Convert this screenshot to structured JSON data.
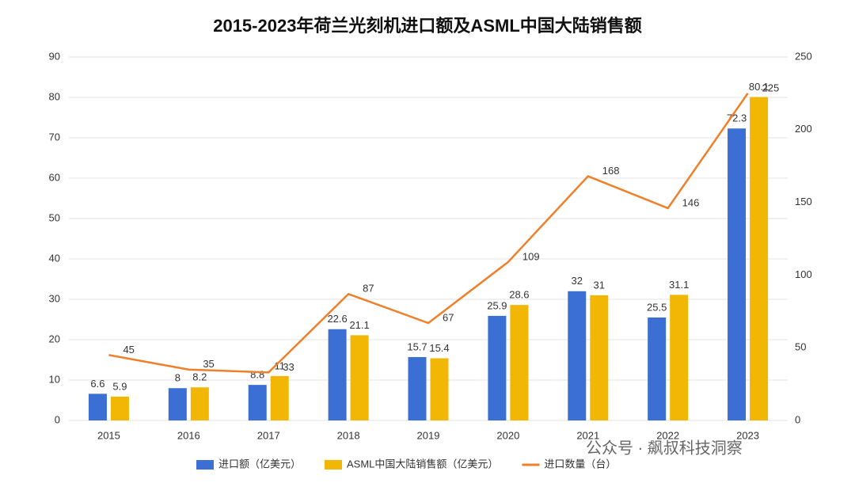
{
  "chart_data": {
    "type": "bar",
    "title": "2015-2023年荷兰光刻机进口额及ASML中国大陆销售额",
    "categories": [
      "2015",
      "2016",
      "2017",
      "2018",
      "2019",
      "2020",
      "2021",
      "2022",
      "2023"
    ],
    "series": [
      {
        "name": "进口额（亿美元）",
        "type": "bar",
        "color": "#3b6fd4",
        "values": [
          6.6,
          8,
          8.8,
          22.6,
          15.7,
          25.9,
          32,
          25.5,
          72.3
        ]
      },
      {
        "name": "ASML中国大陆销售额（亿美元）",
        "type": "bar",
        "color": "#f2b705",
        "values": [
          5.9,
          8.2,
          11,
          21.1,
          15.4,
          28.6,
          31,
          31.1,
          80.1
        ]
      },
      {
        "name": "进口数量（台）",
        "type": "line",
        "axis": "y2",
        "color": "#f07f2a",
        "values": [
          45,
          35,
          33,
          87,
          67,
          109,
          168,
          146,
          225
        ]
      }
    ],
    "ylim": [
      0,
      90
    ],
    "yticks": [
      0,
      10,
      20,
      30,
      40,
      50,
      60,
      70,
      80,
      90
    ],
    "y2lim": [
      0,
      250
    ],
    "y2ticks": [
      0,
      50,
      100,
      150,
      200,
      250
    ],
    "grid": true,
    "legend": "bottom",
    "annotations": [
      "公众号 · 飙叔科技洞察"
    ]
  }
}
